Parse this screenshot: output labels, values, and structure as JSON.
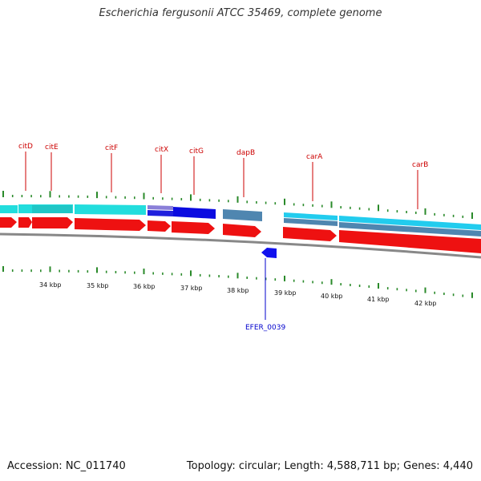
{
  "header": {
    "title": "Escherichia fergusonii ATCC 35469, complete genome"
  },
  "footer": {
    "accession": "Accession: NC_011740",
    "summary": "Topology: circular; Length: 4,588,711 bp; Genes: 4,440"
  },
  "colors": {
    "label_forward": "#cc0000",
    "label_reverse": "#0000cc",
    "cds": "#ee1111",
    "cds_reverse": "#1111ee",
    "gene_cyan": "#22dddd",
    "gene_steel": "#4f86b0",
    "tick": "#2a8a2a",
    "backbone": "#888888"
  },
  "map": {
    "scale_labels": [
      "34 kbp",
      "35 kbp",
      "36 kbp",
      "37 kbp",
      "38 kbp",
      "39 kbp",
      "40 kbp",
      "41 kbp",
      "42 kbp"
    ],
    "gene_labels": [
      {
        "id": "citD",
        "label": "citD",
        "strand": "forward"
      },
      {
        "id": "citE",
        "label": "citE",
        "strand": "forward"
      },
      {
        "id": "citF",
        "label": "citF",
        "strand": "forward"
      },
      {
        "id": "citX",
        "label": "citX",
        "strand": "forward"
      },
      {
        "id": "citG",
        "label": "citG",
        "strand": "forward"
      },
      {
        "id": "dapB",
        "label": "dapB",
        "strand": "forward"
      },
      {
        "id": "carA",
        "label": "carA",
        "strand": "forward"
      },
      {
        "id": "carB",
        "label": "carB",
        "strand": "forward"
      },
      {
        "id": "EFER_0039",
        "label": "EFER_0039",
        "strand": "reverse"
      }
    ]
  }
}
